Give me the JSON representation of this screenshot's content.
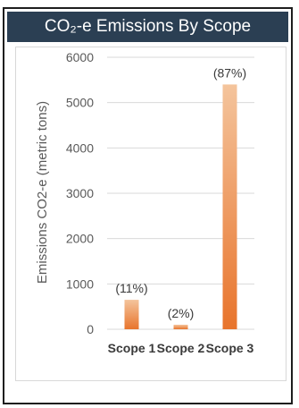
{
  "chart_data": {
    "type": "bar",
    "title": "CO₂-e Emissions By Scope",
    "ylabel": "Emissions CO2-e (metric tons)",
    "xlabel": "",
    "categories": [
      "Scope 1",
      "Scope 2",
      "Scope 3"
    ],
    "values": [
      650,
      100,
      5400
    ],
    "data_labels": [
      "(11%)",
      "(2%)",
      "(87%)"
    ],
    "ylim": [
      0,
      6000
    ],
    "yticks": [
      0,
      1000,
      2000,
      3000,
      4000,
      5000,
      6000
    ],
    "grid": true,
    "legend": "none",
    "colors": {
      "bar_top": "#f4c49c",
      "bar_bottom": "#e8742c",
      "title_bg": "#2b3f53",
      "gridline": "#d9d9d9"
    }
  }
}
